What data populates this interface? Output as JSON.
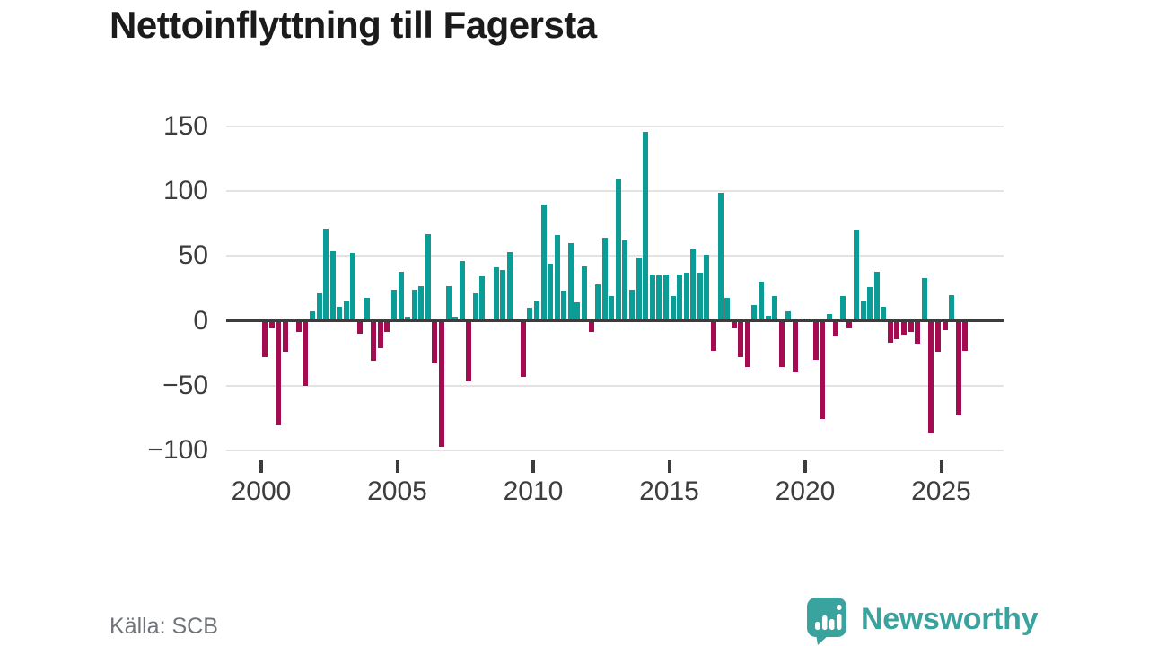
{
  "header": {
    "title": "Nettoinflyttning till Fagersta"
  },
  "footer": {
    "source": "Källa: SCB",
    "brand": "Newsworthy"
  },
  "colors": {
    "positive": "#0b9d95",
    "negative": "#a30c50",
    "grid": "#e3e3e3",
    "zero_line": "#3c3c3c",
    "axis_text": "#3d3d3d",
    "title_text": "#1b1b1b",
    "source_text": "#707379",
    "brand": "#3aa39e"
  },
  "chart_data": {
    "type": "bar",
    "title": "Nettoinflyttning till Fagersta",
    "frequency": "quarterly",
    "start_period": "2000 Q1",
    "end_period": "2025 Q4",
    "grid": true,
    "legend": false,
    "ylim": [
      -110,
      165
    ],
    "y_ticks": [
      {
        "value": 150,
        "label": "150"
      },
      {
        "value": 100,
        "label": "100"
      },
      {
        "value": 50,
        "label": "50"
      },
      {
        "value": 0,
        "label": "0"
      },
      {
        "value": -50,
        "label": "−50"
      },
      {
        "value": -100,
        "label": "−100"
      }
    ],
    "x_ticks": [
      {
        "label": "2000",
        "quarter_index": 0
      },
      {
        "label": "2005",
        "quarter_index": 20
      },
      {
        "label": "2010",
        "quarter_index": 40
      },
      {
        "label": "2015",
        "quarter_index": 60
      },
      {
        "label": "2020",
        "quarter_index": 80
      },
      {
        "label": "2025",
        "quarter_index": 100
      }
    ],
    "series": [
      {
        "name": "Nettoinflyttning",
        "values": [
          -28,
          -6,
          -81,
          -24,
          0,
          -9,
          -50,
          7,
          21,
          71,
          54,
          11,
          15,
          52,
          -10,
          18,
          -31,
          -21,
          -9,
          24,
          38,
          3,
          24,
          27,
          67,
          -33,
          -97,
          27,
          3,
          46,
          -47,
          21,
          34,
          2,
          41,
          39,
          53,
          0,
          -43,
          10,
          15,
          90,
          44,
          66,
          23,
          60,
          14,
          42,
          -9,
          28,
          64,
          19,
          109,
          62,
          24,
          49,
          146,
          36,
          35,
          36,
          19,
          36,
          37,
          55,
          37,
          51,
          -23,
          99,
          18,
          -6,
          -28,
          -36,
          12,
          30,
          4,
          19,
          -36,
          7,
          -40,
          2,
          2,
          -30,
          -76,
          5,
          -12,
          19,
          -6,
          70,
          15,
          26,
          38,
          11,
          -17,
          -14,
          -11,
          -9,
          -18,
          33,
          -87,
          -24,
          -7,
          20,
          -73,
          -23
        ]
      }
    ]
  }
}
